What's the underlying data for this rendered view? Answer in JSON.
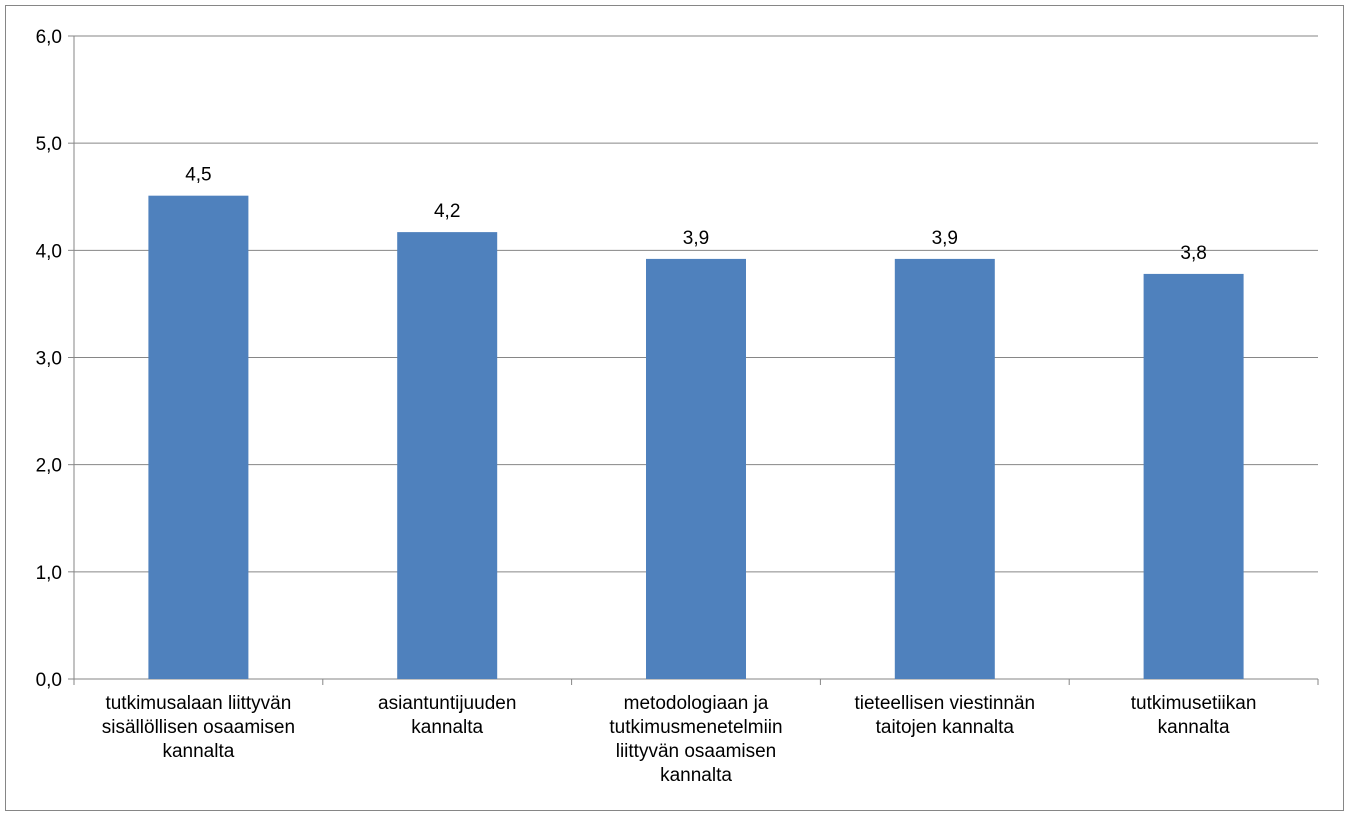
{
  "chart_data": {
    "type": "bar",
    "categories": [
      [
        "tutkimusalaan liittyvän",
        "sisällöllisen osaamisen",
        "kannalta"
      ],
      [
        "asiantuntijuuden",
        "kannalta"
      ],
      [
        "metodologiaan ja",
        "tutkimusmenetelmiin",
        "liittyvän osaamisen",
        "kannalta"
      ],
      [
        "tieteellisen viestinnän",
        "taitojen kannalta"
      ],
      [
        "tutkimusetiikan",
        "kannalta"
      ]
    ],
    "values": [
      4.51,
      4.17,
      3.92,
      3.92,
      3.78
    ],
    "data_labels": [
      "4,5",
      "4,2",
      "3,9",
      "3,9",
      "3,8"
    ],
    "ylim": [
      0,
      6
    ],
    "yticks": [
      0,
      1,
      2,
      3,
      4,
      5,
      6
    ],
    "ytick_labels": [
      "0,0",
      "1,0",
      "2,0",
      "3,0",
      "4,0",
      "5,0",
      "6,0"
    ],
    "grid": true,
    "legend": "none",
    "colors": {
      "bar": "#4F81BD",
      "gridline": "#868686",
      "axis": "#868686",
      "frame": "#868686"
    }
  }
}
